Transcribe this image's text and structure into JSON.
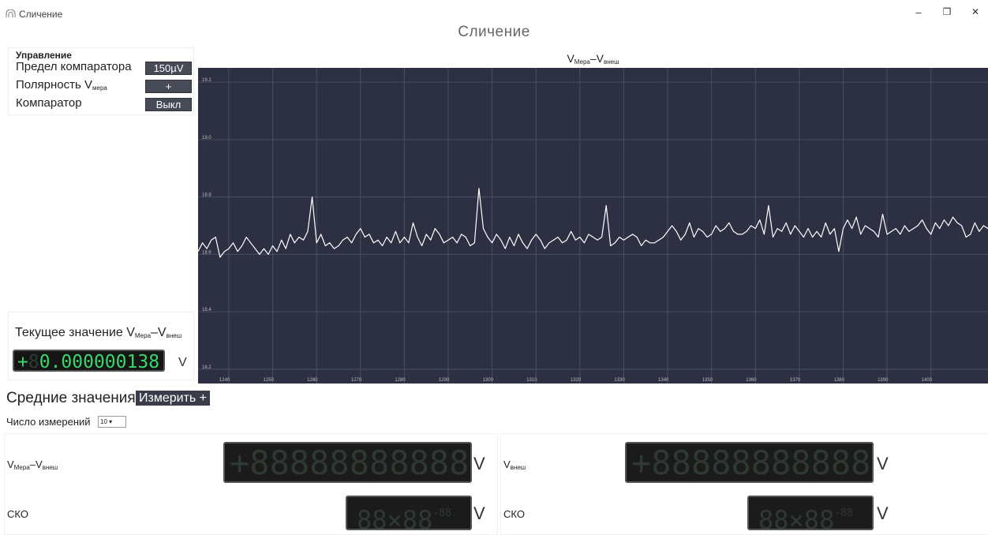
{
  "window": {
    "app_title": "Сличение",
    "page_title": "Сличение",
    "controls": {
      "minimize": "–",
      "maximize": "❐",
      "close": "✕"
    }
  },
  "control_panel": {
    "heading": "Управление",
    "comparator_limit_label": "Предел компаратора",
    "comparator_limit_value": "150µV",
    "polarity_label": "Полярность V",
    "polarity_sub": "мера",
    "polarity_value": "+",
    "comparator_label": "Компаратор",
    "comparator_value": "Выкл"
  },
  "current_value": {
    "label_prefix": "Текущее значение V",
    "label_sub1": "Мера",
    "label_sep": "–V",
    "label_sub2": "внеш",
    "sign": "+",
    "dim_digit": "8",
    "value": "0.000000138",
    "unit": "V"
  },
  "chart_title": {
    "prefix": "V",
    "sub1": "Мера",
    "sep": "–V",
    "sub2": "внеш"
  },
  "chart_data": {
    "type": "line",
    "title": "VМера–Vвнеш",
    "x_ticks": [
      1240,
      1250,
      1260,
      1270,
      1280,
      1290,
      1300,
      1310,
      1320,
      1330,
      1340,
      1350,
      1360,
      1370,
      1380,
      1390,
      1400
    ],
    "y_ticks": [
      18.2,
      18.4,
      18.6,
      18.8,
      19.0,
      19.2
    ],
    "xlim": [
      1233,
      1413
    ],
    "ylim": [
      18.15,
      19.25
    ],
    "grid": true,
    "series": [
      {
        "x_start": 1233,
        "x_step": 1,
        "values": [
          18.61,
          18.64,
          18.62,
          18.65,
          18.66,
          18.59,
          18.61,
          18.62,
          18.64,
          18.61,
          18.63,
          18.66,
          18.64,
          18.62,
          18.6,
          18.62,
          18.6,
          18.63,
          18.61,
          18.65,
          18.62,
          18.67,
          18.64,
          18.66,
          18.65,
          18.68,
          18.8,
          18.64,
          18.67,
          18.63,
          18.64,
          18.62,
          18.63,
          18.65,
          18.66,
          18.64,
          18.67,
          18.69,
          18.66,
          18.67,
          18.64,
          18.65,
          18.63,
          18.66,
          18.64,
          18.68,
          18.64,
          18.66,
          18.64,
          18.71,
          18.66,
          18.63,
          18.67,
          18.65,
          18.69,
          18.67,
          18.64,
          18.65,
          18.66,
          18.64,
          18.67,
          18.66,
          18.63,
          18.64,
          18.83,
          18.69,
          18.66,
          18.64,
          18.67,
          18.65,
          18.62,
          18.66,
          18.63,
          18.67,
          18.64,
          18.62,
          18.65,
          18.67,
          18.65,
          18.62,
          18.64,
          18.65,
          18.66,
          18.64,
          18.65,
          18.68,
          18.65,
          18.66,
          18.64,
          18.67,
          18.66,
          18.65,
          18.66,
          18.77,
          18.63,
          18.64,
          18.66,
          18.65,
          18.66,
          18.67,
          18.66,
          18.63,
          18.65,
          18.64,
          18.64,
          18.65,
          18.66,
          18.68,
          18.7,
          18.68,
          18.65,
          18.67,
          18.71,
          18.66,
          18.69,
          18.68,
          18.66,
          18.67,
          18.7,
          18.68,
          18.69,
          18.71,
          18.68,
          18.67,
          18.67,
          18.68,
          18.7,
          18.69,
          18.72,
          18.67,
          18.77,
          18.66,
          18.69,
          18.68,
          18.71,
          18.67,
          18.7,
          18.68,
          18.66,
          18.69,
          18.66,
          18.68,
          18.66,
          18.71,
          18.67,
          18.69,
          18.61,
          18.69,
          18.72,
          18.69,
          18.73,
          18.67,
          18.7,
          18.69,
          18.68,
          18.66,
          18.74,
          18.67,
          18.68,
          18.69,
          18.67,
          18.7,
          18.68,
          18.69,
          18.7,
          18.72,
          18.69,
          18.67,
          18.71,
          18.69,
          18.72,
          18.7,
          18.73,
          18.71,
          18.7,
          18.66,
          18.67,
          18.71,
          18.68,
          18.7,
          18.69,
          18.68,
          18.69,
          18.72,
          18.69,
          18.71,
          18.7,
          18.72,
          18.69,
          18.7,
          18.71,
          18.7,
          18.72
        ]
      }
    ]
  },
  "averages": {
    "heading": "Средние значения",
    "measure_button": "Измерить +",
    "count_label": "Число измерений",
    "count_value": "10 ▾",
    "left": {
      "label_prefix": "V",
      "label_sub1": "Мера",
      "label_sep": "–V",
      "label_sub2": "внеш",
      "value_display": "+88888888888",
      "unit": "V",
      "sko_label": "СКО",
      "sko_display": "88×88",
      "sko_exp": "-88",
      "sko_unit": "V"
    },
    "right": {
      "label_prefix": "V",
      "label_sub": "внеш",
      "value_display": "+88888888888",
      "unit": "V",
      "sko_label": "СКО",
      "sko_display": "88×88",
      "sko_exp": "-88",
      "sko_unit": "V"
    }
  }
}
